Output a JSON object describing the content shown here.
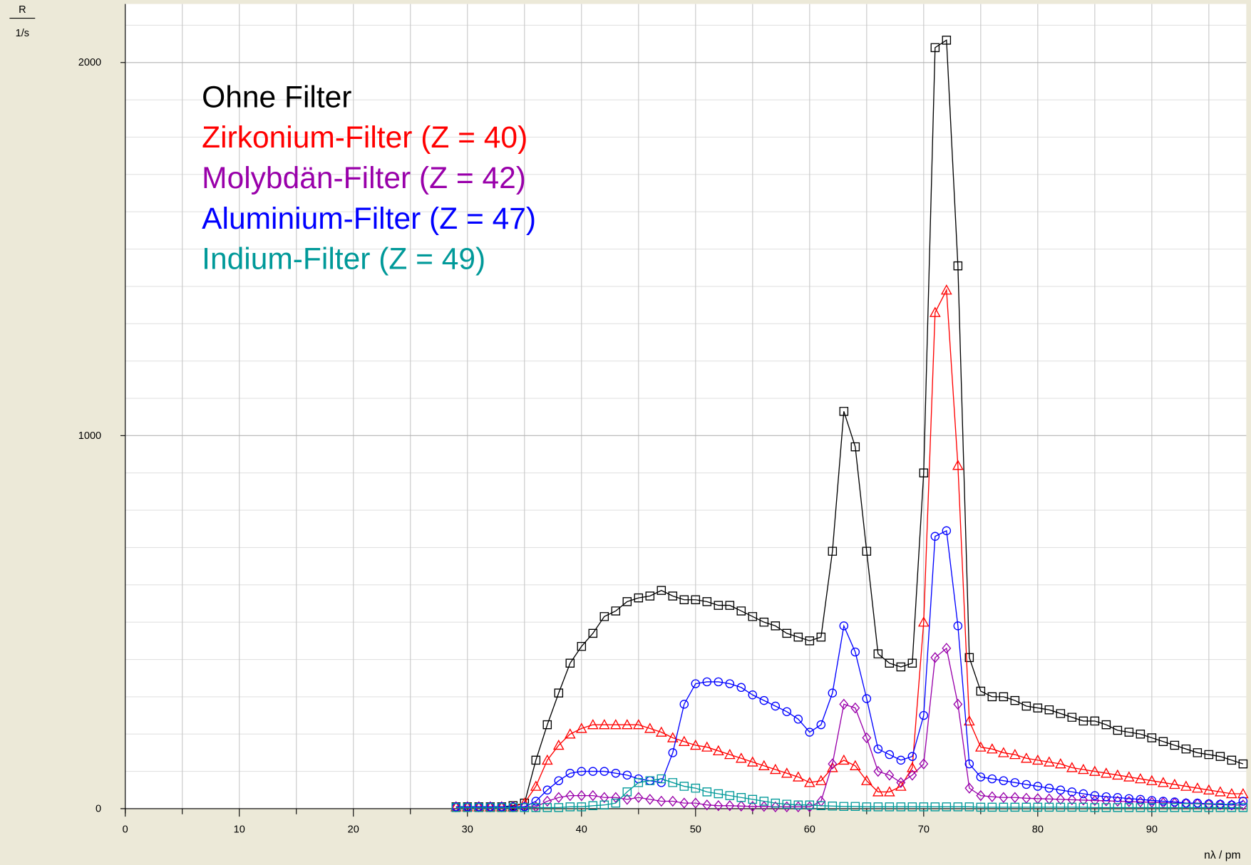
{
  "chart_data": {
    "type": "line",
    "ylabel": "R",
    "yunit": "1/s",
    "xlabel": "nλ / pm",
    "xlim": [
      0,
      98
    ],
    "ylim": [
      0,
      2157
    ],
    "xticks": [
      0,
      10,
      20,
      30,
      40,
      50,
      60,
      70,
      80,
      90
    ],
    "x_minor_ticks": [
      5,
      15,
      25,
      35,
      45,
      55,
      65,
      75,
      85,
      95
    ],
    "yticks": [
      0,
      1000,
      2000
    ],
    "y_minor_ticks": [
      100,
      200,
      300,
      400,
      500,
      600,
      700,
      800,
      900,
      1100,
      1200,
      1300,
      1400,
      1500,
      1600,
      1700,
      1800,
      1900,
      2100
    ],
    "grid": true,
    "legend": "upper left",
    "x": [
      29,
      30,
      31,
      32,
      33,
      34,
      35,
      36,
      37,
      38,
      39,
      40,
      41,
      42,
      43,
      44,
      45,
      46,
      47,
      48,
      49,
      50,
      51,
      52,
      53,
      54,
      55,
      56,
      57,
      58,
      59,
      60,
      61,
      62,
      63,
      64,
      65,
      66,
      67,
      68,
      69,
      70,
      71,
      72,
      73,
      74,
      75,
      76,
      77,
      78,
      79,
      80,
      81,
      82,
      83,
      84,
      85,
      86,
      87,
      88,
      89,
      90,
      91,
      92,
      93,
      94,
      95,
      96,
      97,
      98
    ],
    "series": [
      {
        "name": "Ohne Filter",
        "color": "#000000",
        "marker": "square",
        "values": [
          5,
          5,
          5,
          5,
          5,
          8,
          15,
          130,
          225,
          310,
          390,
          435,
          470,
          515,
          530,
          555,
          565,
          570,
          585,
          570,
          560,
          560,
          555,
          545,
          545,
          530,
          515,
          500,
          490,
          470,
          460,
          450,
          460,
          690,
          1065,
          970,
          690,
          415,
          390,
          380,
          390,
          900,
          2040,
          2060,
          1455,
          405,
          315,
          300,
          300,
          290,
          275,
          270,
          265,
          255,
          245,
          235,
          235,
          225,
          210,
          205,
          200,
          190,
          180,
          170,
          160,
          150,
          145,
          140,
          130,
          120
        ]
      },
      {
        "name": "Zirkonium-Filter (Z = 40)",
        "color": "#ff0000",
        "marker": "triangle",
        "values": [
          5,
          5,
          5,
          5,
          5,
          5,
          15,
          60,
          130,
          170,
          200,
          215,
          225,
          225,
          225,
          225,
          225,
          215,
          205,
          190,
          180,
          170,
          165,
          155,
          145,
          135,
          125,
          115,
          105,
          95,
          85,
          70,
          75,
          110,
          130,
          115,
          75,
          45,
          45,
          60,
          110,
          500,
          1330,
          1390,
          920,
          235,
          165,
          160,
          150,
          145,
          135,
          130,
          125,
          120,
          110,
          105,
          100,
          95,
          90,
          85,
          80,
          75,
          70,
          65,
          60,
          55,
          50,
          45,
          40,
          40
        ]
      },
      {
        "name": "Molybdän-Filter (Z = 42)",
        "color": "#9900aa",
        "marker": "diamond",
        "values": [
          5,
          5,
          5,
          5,
          5,
          5,
          5,
          5,
          20,
          30,
          35,
          35,
          35,
          30,
          30,
          25,
          30,
          25,
          20,
          20,
          15,
          15,
          10,
          8,
          8,
          7,
          6,
          6,
          5,
          5,
          5,
          5,
          20,
          120,
          280,
          270,
          190,
          100,
          90,
          70,
          90,
          120,
          405,
          430,
          280,
          55,
          35,
          32,
          30,
          30,
          28,
          27,
          26,
          25,
          24,
          23,
          22,
          21,
          20,
          19,
          18,
          17,
          16,
          15,
          14,
          13,
          12,
          11,
          10,
          10
        ]
      },
      {
        "name": "Aluminium-Filter (Z = 47)",
        "color": "#0000ff",
        "marker": "circle",
        "values": [
          5,
          5,
          5,
          5,
          5,
          5,
          5,
          20,
          50,
          75,
          95,
          100,
          100,
          100,
          95,
          90,
          80,
          75,
          70,
          150,
          280,
          335,
          340,
          340,
          335,
          325,
          305,
          290,
          275,
          260,
          240,
          205,
          225,
          310,
          490,
          420,
          295,
          160,
          145,
          130,
          140,
          250,
          730,
          745,
          490,
          120,
          85,
          80,
          75,
          70,
          65,
          60,
          55,
          50,
          45,
          40,
          35,
          32,
          30,
          27,
          25,
          22,
          20,
          18,
          15,
          15,
          13,
          12,
          10,
          20
        ]
      },
      {
        "name": "Indium-Filter (Z = 49)",
        "color": "#009999",
        "marker": "square",
        "values": [
          3,
          3,
          3,
          3,
          3,
          3,
          3,
          3,
          3,
          3,
          5,
          5,
          8,
          10,
          15,
          45,
          70,
          75,
          80,
          70,
          60,
          55,
          45,
          40,
          35,
          30,
          25,
          20,
          15,
          12,
          10,
          10,
          8,
          7,
          6,
          6,
          5,
          5,
          5,
          5,
          5,
          5,
          5,
          5,
          5,
          5,
          4,
          4,
          4,
          4,
          4,
          4,
          4,
          4,
          4,
          4,
          3,
          3,
          3,
          3,
          3,
          3,
          3,
          3,
          3,
          3,
          3,
          3,
          3,
          3
        ]
      }
    ]
  }
}
